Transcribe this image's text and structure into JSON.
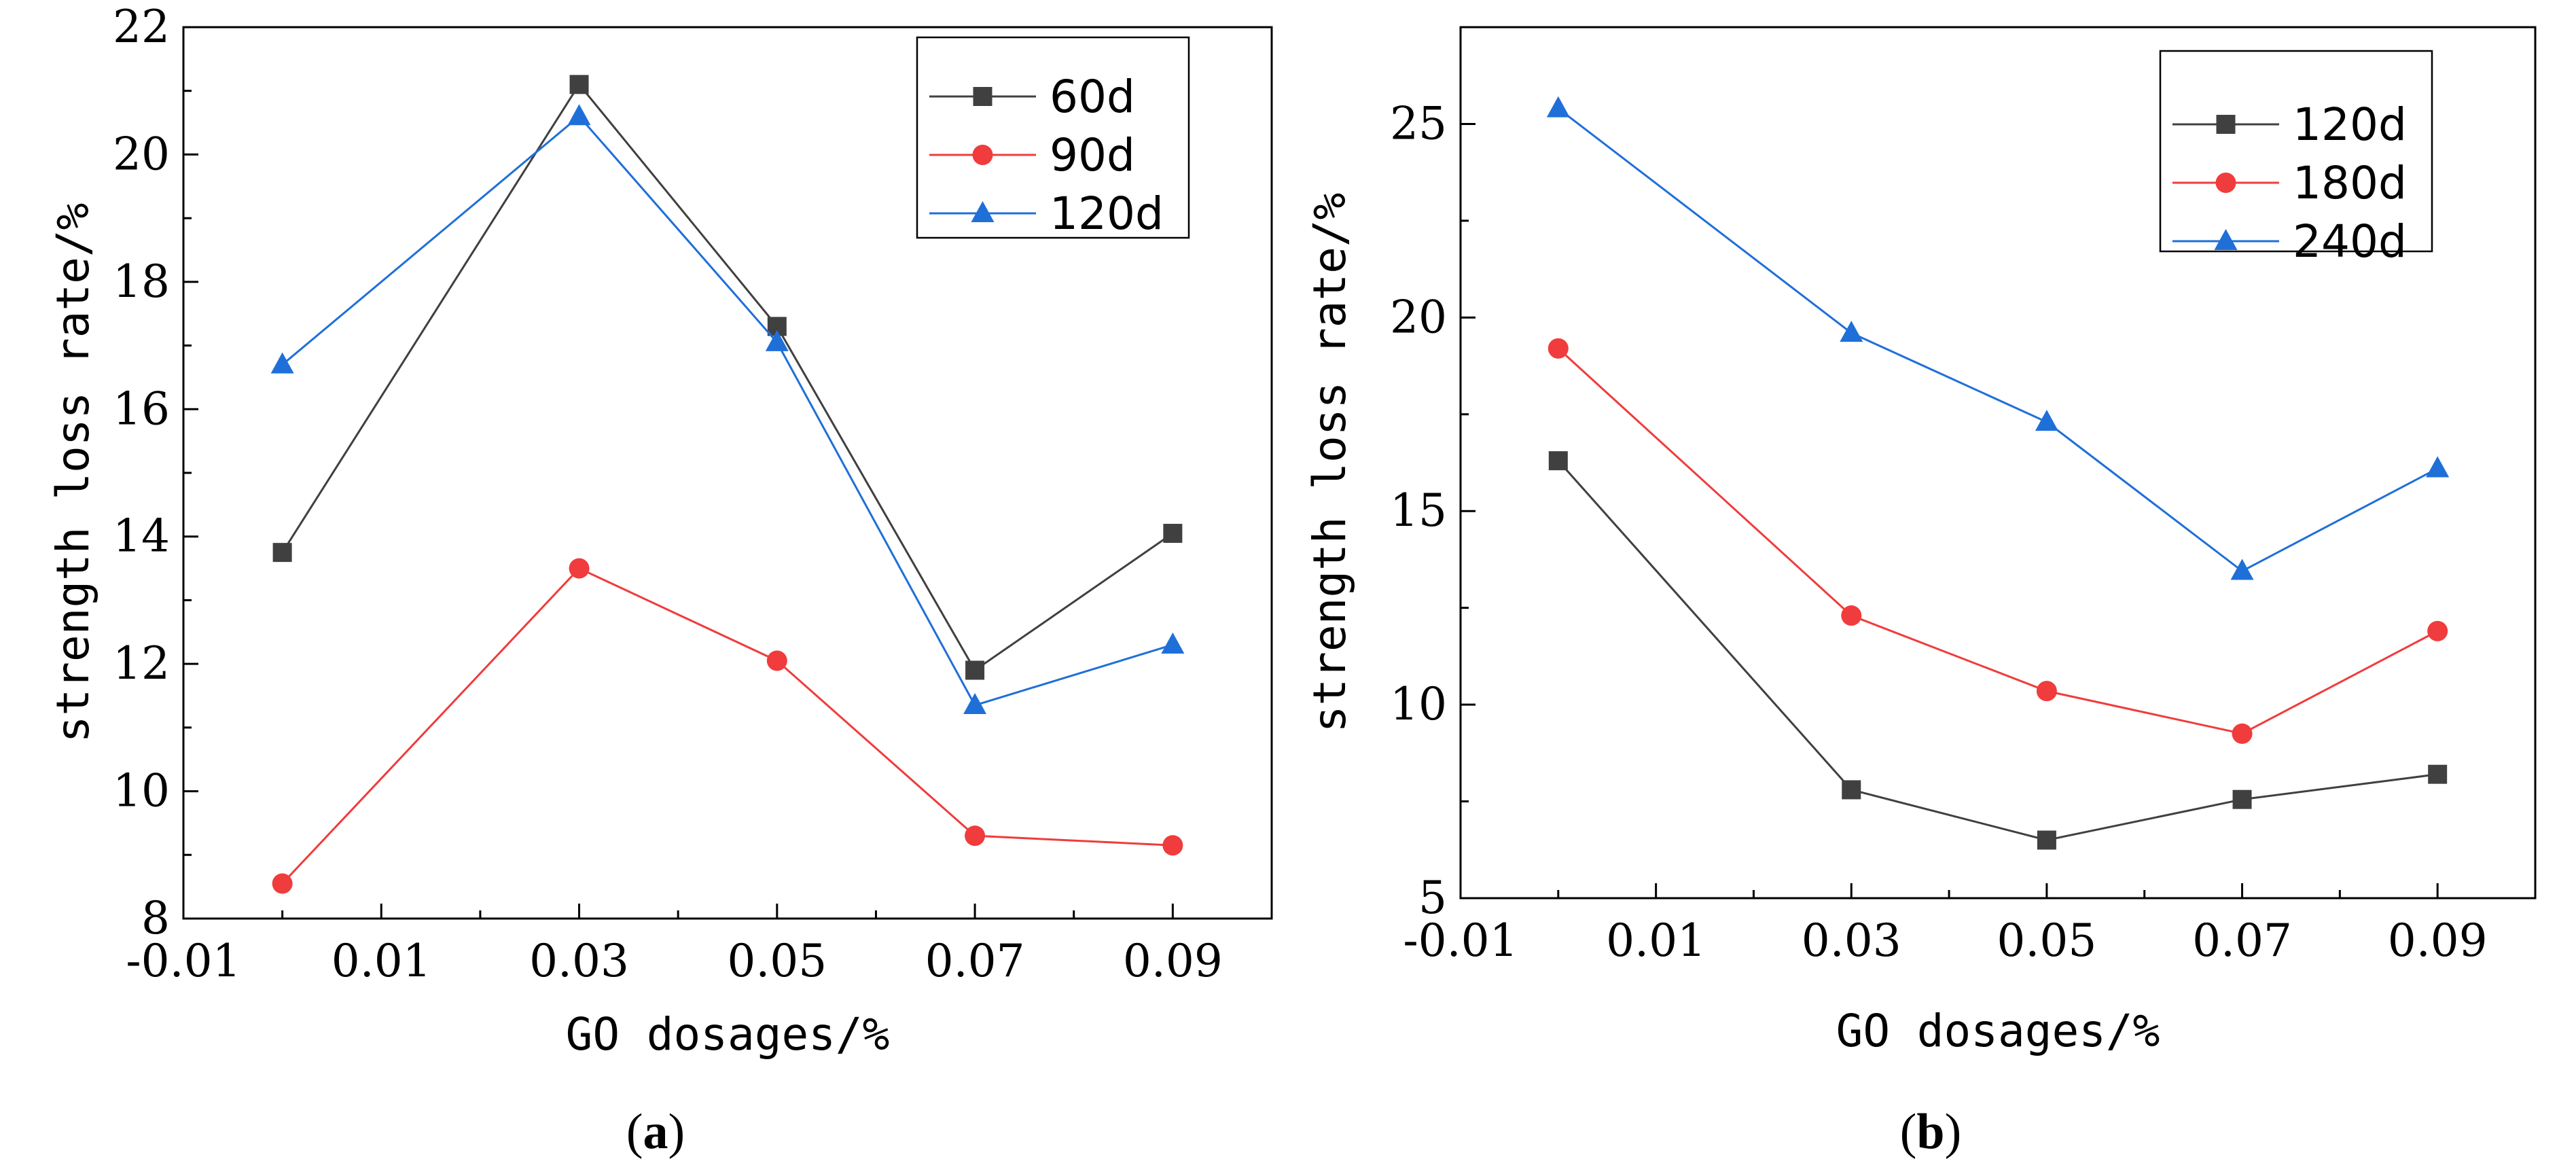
{
  "chart_data": [
    {
      "type": "line",
      "panel_label": "a",
      "xlabel": "GO dosages/%",
      "ylabel": "strength loss rate/%",
      "xlim": [
        -0.01,
        0.1
      ],
      "ylim": [
        8,
        22
      ],
      "x_ticks": [
        -0.01,
        0.01,
        0.03,
        0.05,
        0.07,
        0.09
      ],
      "x_tick_labels": [
        "-0.01",
        "0.01",
        "0.03",
        "0.05",
        "0.07",
        "0.09"
      ],
      "y_ticks": [
        8,
        10,
        12,
        14,
        16,
        18,
        20,
        22
      ],
      "y_tick_labels": [
        "8",
        "10",
        "12",
        "14",
        "16",
        "18",
        "20",
        "22"
      ],
      "legend_position": "top-right",
      "x": [
        0,
        0.03,
        0.05,
        0.07,
        0.09
      ],
      "series": [
        {
          "name": "60d",
          "values": [
            13.75,
            21.1,
            17.3,
            11.9,
            14.05
          ],
          "color": "#404040",
          "marker": "square"
        },
        {
          "name": "90d",
          "values": [
            8.55,
            13.5,
            12.05,
            9.3,
            9.15
          ],
          "color": "#f03c3c",
          "marker": "circle"
        },
        {
          "name": "120d",
          "values": [
            16.7,
            20.6,
            17.05,
            11.35,
            12.3
          ],
          "color": "#1f6fd8",
          "marker": "triangle"
        }
      ]
    },
    {
      "type": "line",
      "panel_label": "b",
      "xlabel": "GO dosages/%",
      "ylabel": "strength loss rate/%",
      "xlim": [
        -0.01,
        0.1
      ],
      "ylim": [
        5,
        27.5
      ],
      "x_ticks": [
        -0.01,
        0.01,
        0.03,
        0.05,
        0.07,
        0.09
      ],
      "x_tick_labels": [
        "-0.01",
        "0.01",
        "0.03",
        "0.05",
        "0.07",
        "0.09"
      ],
      "y_ticks": [
        5,
        10,
        15,
        20,
        25
      ],
      "y_tick_labels": [
        "5",
        "10",
        "15",
        "20",
        "25"
      ],
      "legend_position": "top-right",
      "x": [
        0,
        0.03,
        0.05,
        0.07,
        0.09
      ],
      "series": [
        {
          "name": "120d",
          "values": [
            16.3,
            7.8,
            6.5,
            7.55,
            8.2
          ],
          "color": "#404040",
          "marker": "square"
        },
        {
          "name": "180d",
          "values": [
            19.2,
            12.3,
            10.35,
            9.25,
            11.9
          ],
          "color": "#f03c3c",
          "marker": "circle"
        },
        {
          "name": "240d",
          "values": [
            25.4,
            19.6,
            17.3,
            13.45,
            16.1
          ],
          "color": "#1f6fd8",
          "marker": "triangle"
        }
      ]
    }
  ]
}
